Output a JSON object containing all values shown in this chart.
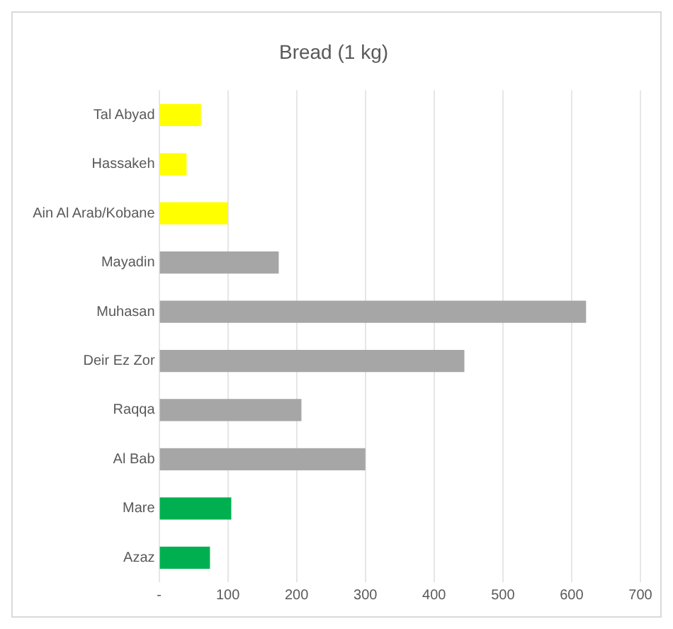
{
  "chart_data": {
    "type": "bar",
    "orientation": "horizontal",
    "title": "Bread (1 kg)",
    "categories": [
      "Tal Abyad",
      "Hassakeh",
      "Ain Al Arab/Kobane",
      "Mayadin",
      "Muhasan",
      "Deir Ez Zor",
      "Raqqa",
      "Al Bab",
      "Mare",
      "Azaz"
    ],
    "values": [
      61,
      40,
      100,
      174,
      621,
      444,
      207,
      300,
      105,
      74
    ],
    "colors": [
      "#ffff00",
      "#ffff00",
      "#ffff00",
      "#a6a6a6",
      "#a6a6a6",
      "#a6a6a6",
      "#a6a6a6",
      "#a6a6a6",
      "#00b050",
      "#00b050"
    ],
    "xlim": [
      0,
      700
    ],
    "xticks": [
      {
        "value": 0,
        "label": "-"
      },
      100,
      200,
      300,
      400,
      500,
      600,
      700
    ],
    "grid": "x",
    "legend": false
  }
}
